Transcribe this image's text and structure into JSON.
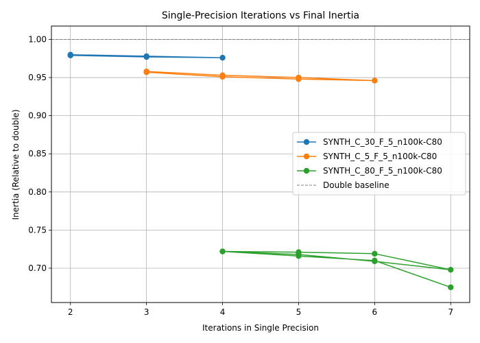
{
  "chart_data": {
    "type": "line",
    "title": "Single-Precision Iterations vs Final Inertia",
    "xlabel": "Iterations in Single Precision",
    "ylabel": "Inertia (Relative to double)",
    "xlim": [
      1.75,
      7.25
    ],
    "ylim": [
      0.655,
      1.0175
    ],
    "xticks": [
      2,
      3,
      4,
      5,
      6,
      7
    ],
    "yticks": [
      0.7,
      0.75,
      0.8,
      0.85,
      0.9,
      0.95,
      1.0
    ],
    "ytick_labels": [
      "0.70",
      "0.75",
      "0.80",
      "0.85",
      "0.90",
      "0.95",
      "1.00"
    ],
    "grid": true,
    "legend_position": "center-right",
    "series": [
      {
        "name": "SYNTH_C_30_F_5_n100k-C80",
        "color": "#1f77b4",
        "x": [
          2,
          3,
          4,
          3,
          2
        ],
        "y": [
          0.98,
          0.978,
          0.976,
          0.977,
          0.979
        ]
      },
      {
        "name": "SYNTH_C_5_F_5_n100k-C80",
        "color": "#ff7f0e",
        "x": [
          3,
          4,
          5,
          6,
          5,
          4,
          3
        ],
        "y": [
          0.958,
          0.953,
          0.95,
          0.946,
          0.948,
          0.951,
          0.957
        ]
      },
      {
        "name": "SYNTH_C_80_F_5_n100k-C80",
        "color": "#2ca02c",
        "x": [
          4,
          5,
          6,
          7,
          6,
          5,
          4,
          5,
          6,
          7
        ],
        "y": [
          0.722,
          0.718,
          0.709,
          0.698,
          0.719,
          0.721,
          0.722,
          0.716,
          0.71,
          0.675
        ]
      }
    ],
    "baseline": {
      "name": "Double baseline",
      "value": 1.0,
      "color": "#808080"
    }
  }
}
